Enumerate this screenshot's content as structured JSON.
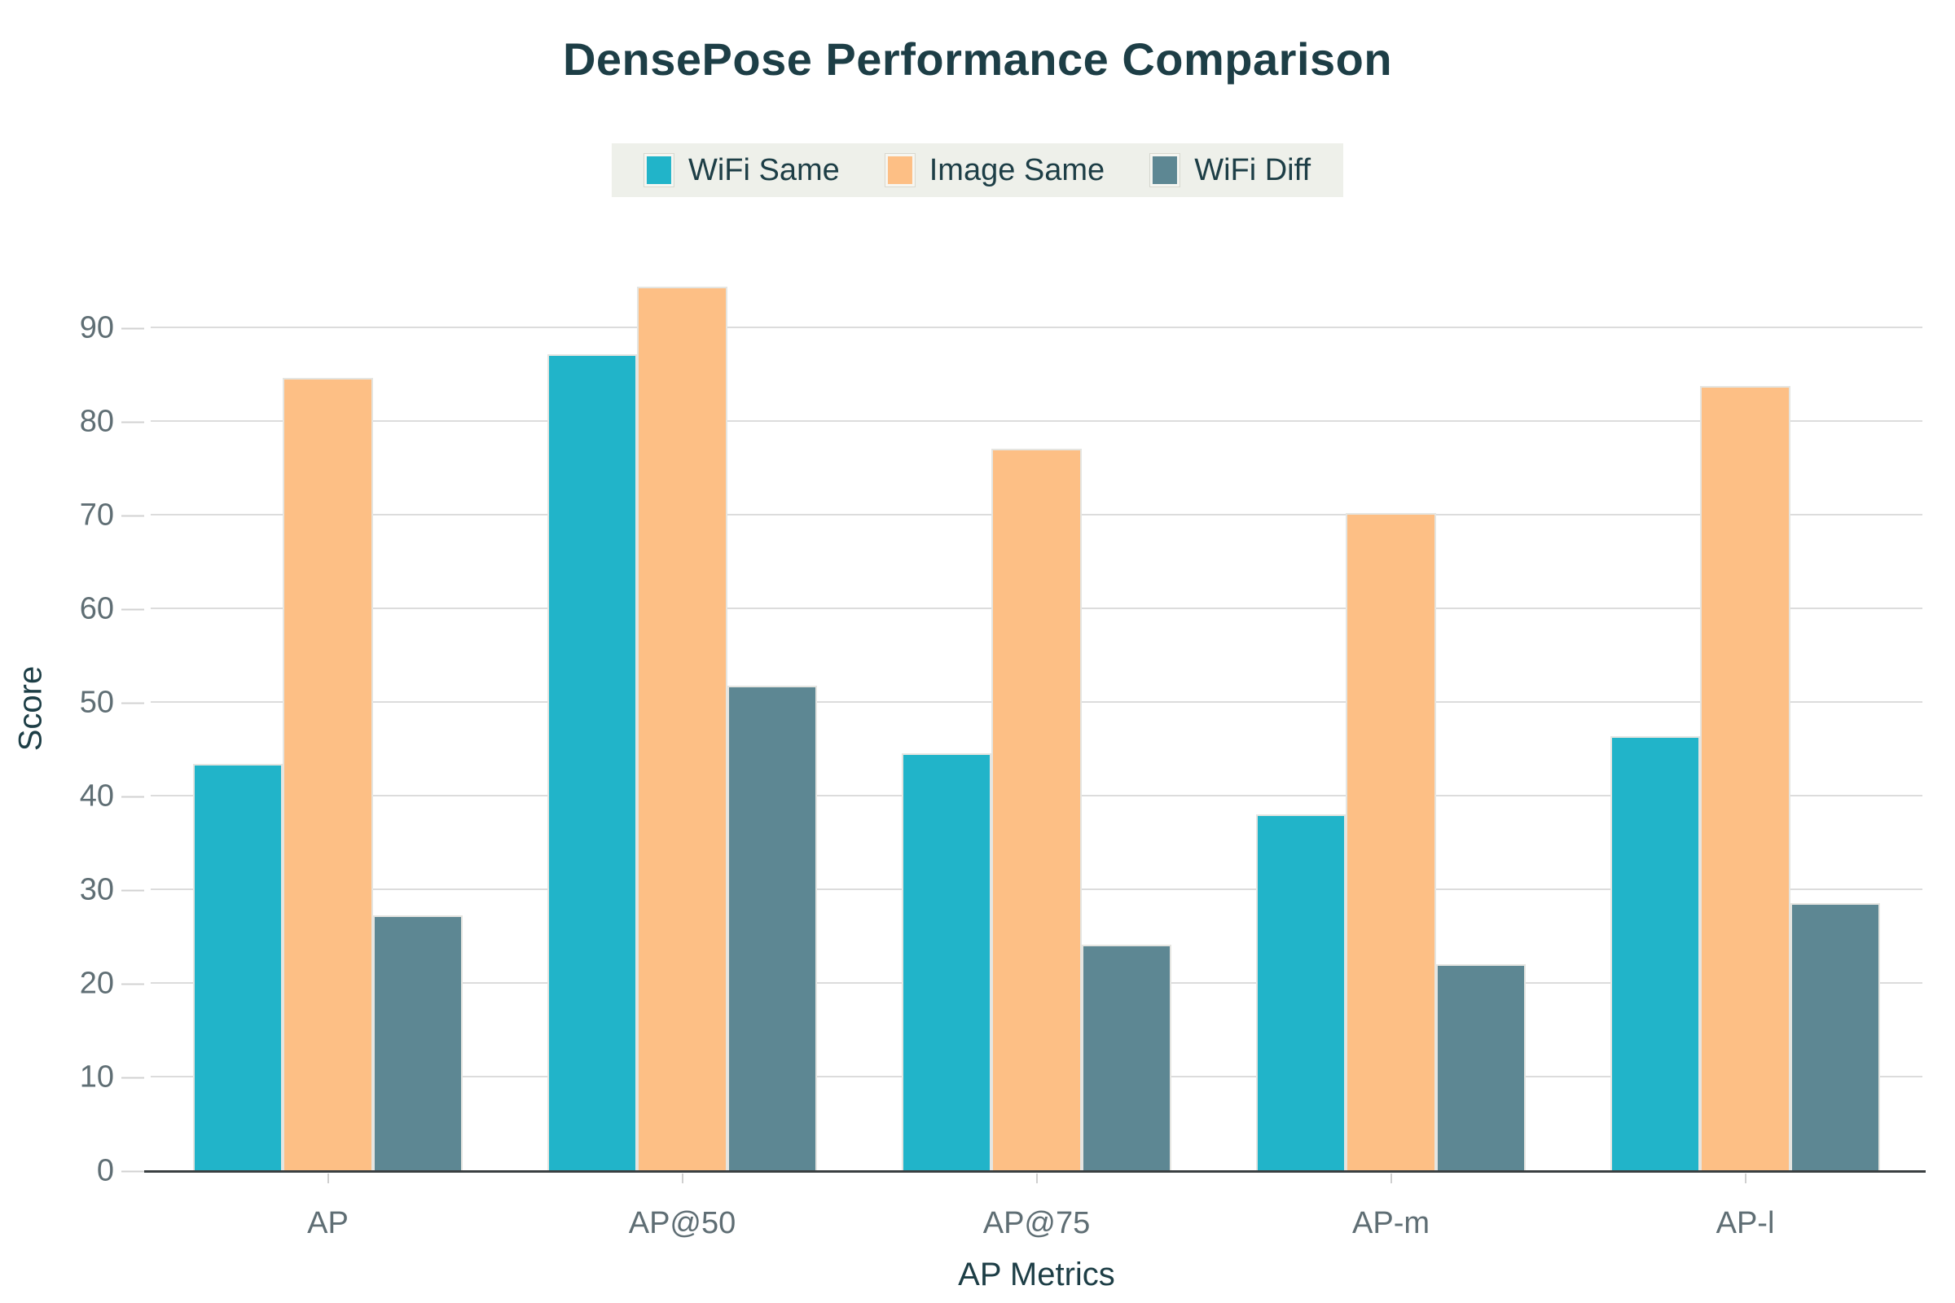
{
  "chart_data": {
    "type": "bar",
    "title": "DensePose Performance Comparison",
    "categories": [
      "AP",
      "AP@50",
      "AP@75",
      "AP-m",
      "AP-l"
    ],
    "series": [
      {
        "name": "WiFi Same",
        "color": "#21b4c9",
        "values": [
          43.5,
          87.2,
          44.6,
          38.1,
          46.4
        ]
      },
      {
        "name": "Image Same",
        "color": "#fdbf85",
        "values": [
          84.7,
          94.4,
          77.1,
          70.3,
          83.8
        ]
      },
      {
        "name": "WiFi Diff",
        "color": "#5d8793",
        "values": [
          27.3,
          51.8,
          24.2,
          22.1,
          28.6
        ]
      }
    ],
    "xlabel": "AP Metrics",
    "ylabel": "Score",
    "ylim": [
      0,
      96
    ],
    "yticks": [
      0,
      10,
      20,
      30,
      40,
      50,
      60,
      70,
      80,
      90
    ],
    "grid": true,
    "legend_position": "top",
    "bar_gap_within_group": 0
  },
  "colors": {
    "background": "#ffffff",
    "title_text": "#1d3e46",
    "tick_label_text": "#5f6e74",
    "grid_line": "#dcdcdc",
    "axis_line": "#3a3f41",
    "legend_background": "#eef0ea"
  }
}
